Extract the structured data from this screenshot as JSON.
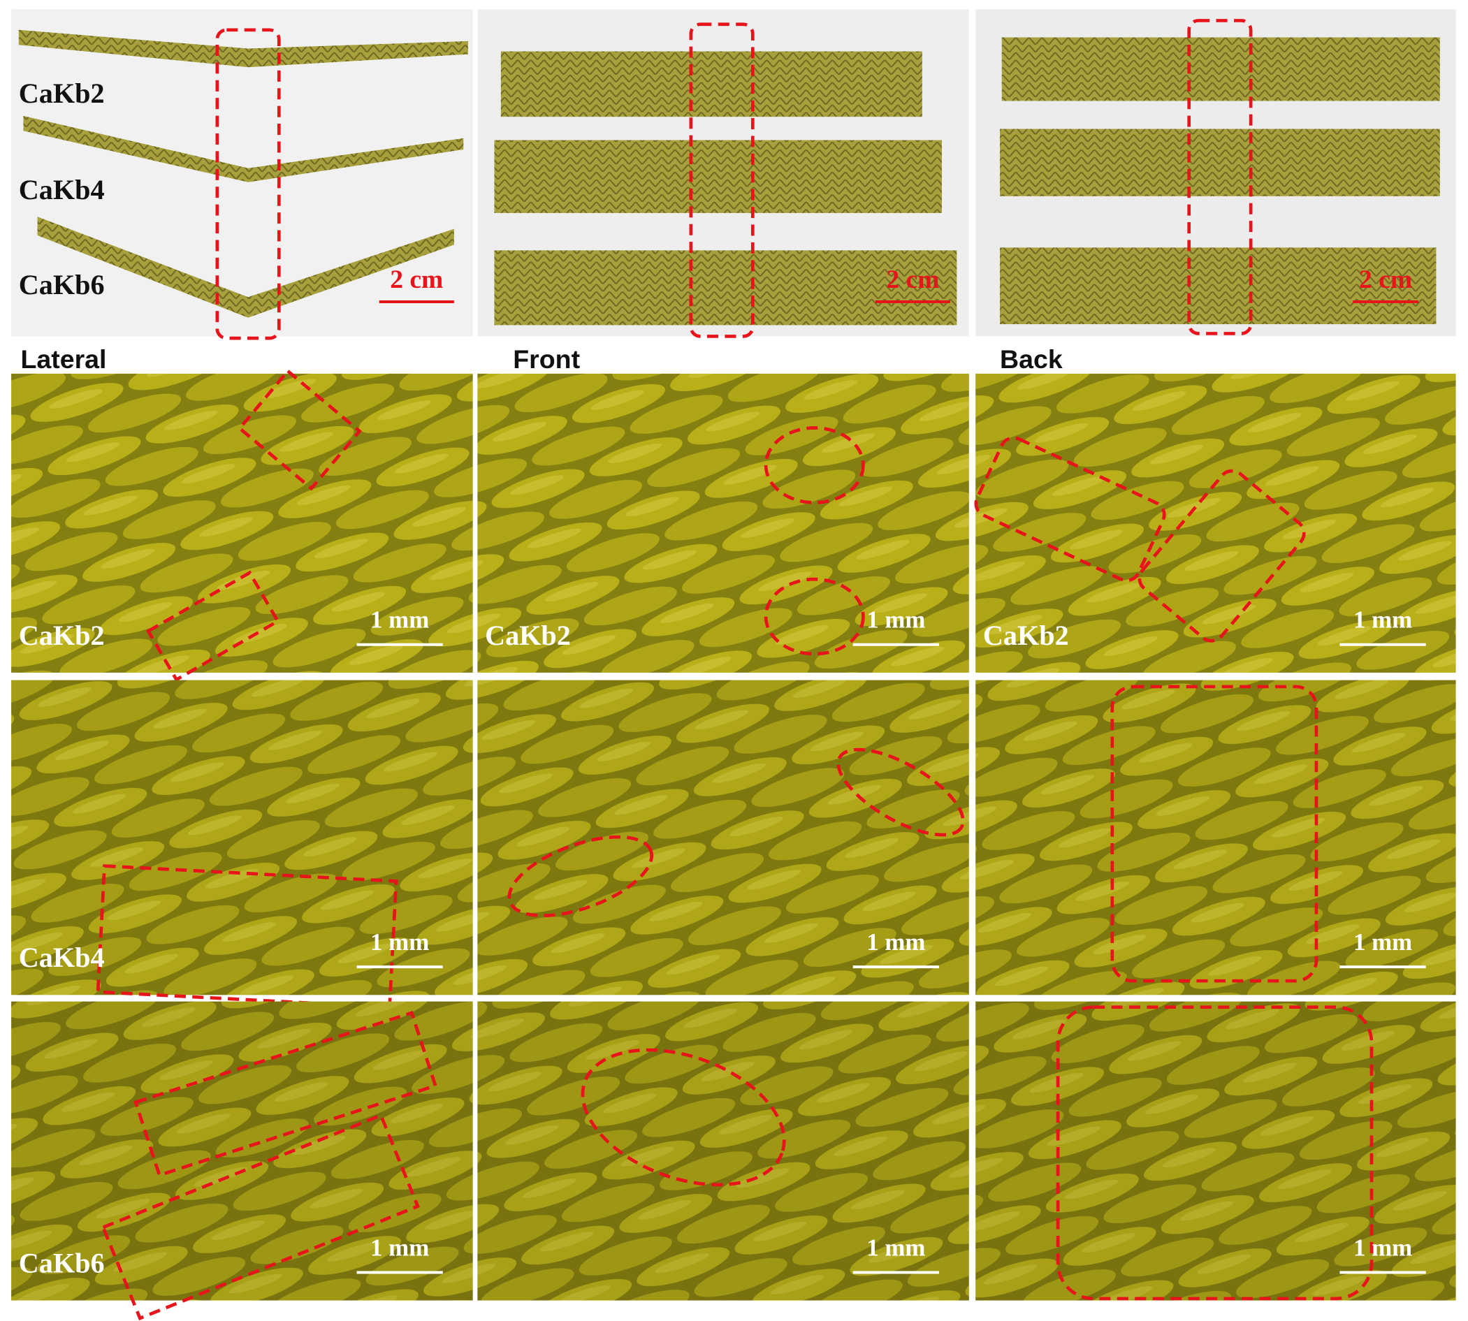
{
  "top_row": {
    "panels": [
      {
        "labels": [
          "CaKb2",
          "CaKb4",
          "CaKb6"
        ],
        "scale_bar": "2 cm"
      },
      {
        "scale_bar": "2 cm"
      },
      {
        "scale_bar": "2 cm"
      }
    ]
  },
  "column_headers": [
    "Lateral",
    "Front",
    "Back"
  ],
  "micrographs": {
    "rows": [
      [
        {
          "label": "CaKb2",
          "scale_bar": "1 mm"
        },
        {
          "label": "CaKb2",
          "scale_bar": "1 mm"
        },
        {
          "label": "CaKb2",
          "scale_bar": "1 mm"
        }
      ],
      [
        {
          "label": "CaKb4",
          "scale_bar": "1 mm"
        },
        {
          "scale_bar": "1 mm"
        },
        {
          "scale_bar": "1 mm"
        }
      ],
      [
        {
          "label": "CaKb6",
          "scale_bar": "1 mm"
        },
        {
          "scale_bar": "1 mm"
        },
        {
          "scale_bar": "1 mm"
        }
      ]
    ]
  }
}
